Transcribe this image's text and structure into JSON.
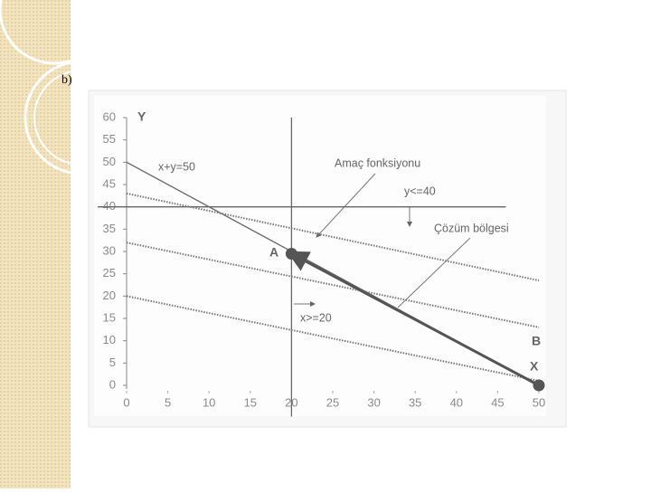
{
  "label": "b)",
  "chart_data": {
    "type": "line",
    "xlim": [
      0,
      50
    ],
    "ylim": [
      0,
      60
    ],
    "xticks": [
      0,
      5,
      10,
      15,
      20,
      25,
      30,
      35,
      40,
      45,
      50
    ],
    "yticks": [
      0,
      5,
      10,
      15,
      20,
      25,
      30,
      35,
      40,
      45,
      50,
      55,
      60
    ],
    "grid": false,
    "series": [
      {
        "color": "#666666",
        "style": "solid",
        "x": [
          0,
          50
        ],
        "values": [
          50,
          0
        ]
      },
      {
        "color": "#666666",
        "style": "solid",
        "x": [
          20,
          20
        ],
        "values": [
          -7,
          60
        ]
      },
      {
        "color": "#666666",
        "style": "solid",
        "x": [
          -3.5,
          46
        ],
        "values": [
          40,
          40
        ]
      },
      {
        "color": "#777777",
        "style": "dotted",
        "x": [
          0,
          50
        ],
        "values": [
          43,
          23.5
        ]
      },
      {
        "color": "#777777",
        "style": "dotted",
        "x": [
          0,
          50
        ],
        "values": [
          32,
          13
        ]
      },
      {
        "color": "#777777",
        "style": "dotted",
        "x": [
          0,
          50
        ],
        "values": [
          20,
          1
        ]
      },
      {
        "color": "#555555",
        "style": "arrow",
        "x": [
          50,
          20
        ],
        "values": [
          0,
          29.5
        ]
      }
    ],
    "points": [
      {
        "x": 20,
        "y": 29.5
      },
      {
        "x": 50,
        "y": 0
      }
    ],
    "point_color": "#555555",
    "annotations": [
      "Y",
      "x+y=50",
      "Amaç fonksiyonu",
      "y<=40",
      "Çözüm bölgesi",
      "A",
      "x>=20",
      "B",
      "X"
    ]
  }
}
